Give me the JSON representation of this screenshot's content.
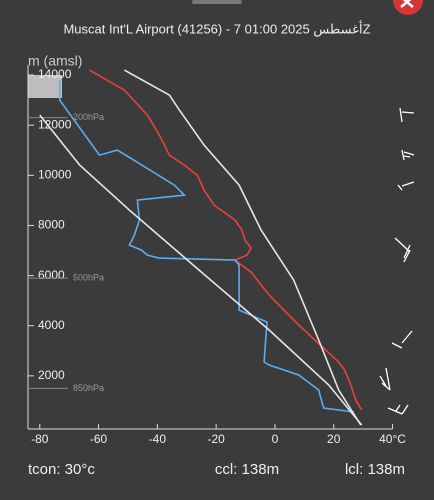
{
  "chart_data": {
    "type": "line",
    "title": "Muscat Int'L Airport (41256) - 7 أغسطس 2025 01:00Z",
    "y_label": "m (amsl)",
    "xlim": [
      -84,
      42
    ],
    "ylim": [
      0,
      14400
    ],
    "xticks": [
      -80,
      -60,
      -40,
      -20,
      0,
      20,
      {
        "value": 40,
        "label": "40°C"
      }
    ],
    "yticks": [
      2000,
      4000,
      6000,
      8000,
      10000,
      12000,
      14000
    ],
    "series": [
      {
        "color": "#e84040",
        "x": [
          29.5,
          27.5,
          25.8,
          23.7,
          21.7,
          8.1,
          -2,
          -8.1,
          -13.6,
          -9.5,
          -8.1,
          -10.2,
          -11.2,
          -13.6,
          -20.7,
          -24.1,
          -26.4,
          -30.8,
          -35.9,
          -39.3,
          -43.4,
          -51.2,
          -63.1
        ],
        "values": [
          638,
          1037,
          1635,
          2233,
          2552,
          4027,
          5223,
          6140,
          6619,
          6818,
          7097,
          7416,
          7815,
          8214,
          8812,
          9410,
          10008,
          10407,
          10805,
          11603,
          12400,
          13397,
          14195
        ]
      },
      {
        "color": "#5aaef0",
        "x": [
          26.8,
          21.7,
          16.6,
          15.6,
          14.9,
          8.1,
          -2,
          -3.7,
          -2.7,
          -12.2,
          -12.2,
          -13.6,
          -39.3,
          -43.4,
          -45.4,
          -49.5,
          -47.8,
          -46.1,
          -46.8,
          -30.8,
          -34.2,
          -53.6,
          -59.7,
          -73.2,
          -73.2
        ],
        "values": [
          558,
          638,
          718,
          1116,
          1435,
          2033,
          2432,
          2552,
          4147,
          4625,
          6419,
          6619,
          6699,
          6818,
          7018,
          7217,
          7616,
          8214,
          9011,
          9211,
          9609,
          11005,
          10805,
          12998,
          13796
        ]
      },
      {
        "color": "#e6e6e6",
        "x": [
          29.2,
          21.7,
          14.9,
          6.4,
          -4.7,
          -12.2,
          -24.1,
          -32.5,
          -35.9,
          -51.2
        ],
        "values": [
          40,
          1435,
          3429,
          5821,
          7815,
          9609,
          11204,
          12600,
          13198,
          14195
        ]
      },
      {
        "color": "#e6e6e6",
        "x": [
          -80,
          -66.4,
          -49.5,
          -25.8,
          -2,
          18.3,
          29.5
        ],
        "values": [
          12400,
          10407,
          8612,
          6220,
          3828,
          1635,
          40
        ]
      }
    ],
    "annotations": [
      {
        "text": "200hPa",
        "y": 12300
      },
      {
        "text": "500hPa",
        "y": 5900
      },
      {
        "text": "850hPa",
        "y": 1500
      }
    ],
    "footer": [
      "tcon: 30°c",
      "ccl: 138m",
      "lcl: 138m"
    ]
  }
}
